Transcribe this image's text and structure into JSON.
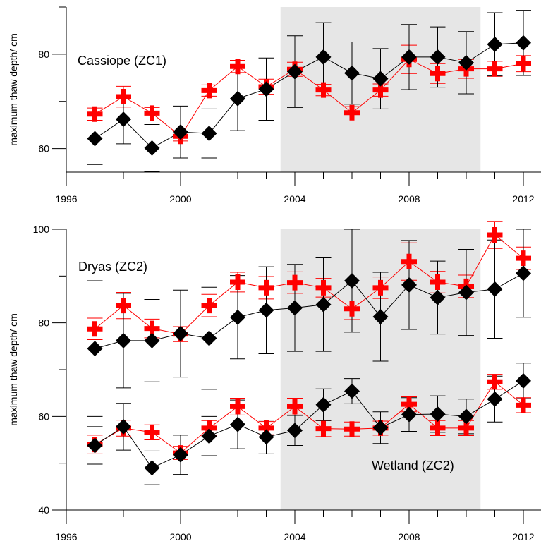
{
  "chart_data": [
    {
      "type": "line",
      "ylabel": "maximum thaw depth/ cm",
      "xlim": [
        1996,
        2012
      ],
      "ylim": [
        55,
        90
      ],
      "x_ticks": [
        "1996",
        "2000",
        "2004",
        "2008",
        "2012"
      ],
      "y_ticks": [
        "60",
        "80"
      ],
      "shaded_x_range": [
        2003.5,
        2010.5
      ],
      "shade_color": "#e6e6e6",
      "annotations": [
        {
          "text": "Cassiope (ZC1)"
        }
      ],
      "series": [
        {
          "marker": "plus",
          "color": "#ff0000",
          "x": [
            1997,
            1998,
            1999,
            2000,
            2001,
            2002,
            2003,
            2004,
            2005,
            2006,
            2007,
            2008,
            2009,
            2010,
            2011,
            2012
          ],
          "y": [
            67.3,
            71.0,
            67.5,
            62.6,
            72.3,
            77.4,
            73.1,
            76.8,
            72.4,
            67.6,
            72.4,
            78.9,
            75.9,
            76.9,
            76.9,
            78.0
          ],
          "err": [
            1.3,
            2.2,
            1.2,
            1.0,
            1.2,
            1.3,
            1.6,
            1.5,
            1.2,
            1.3,
            1.3,
            3.0,
            2.1,
            2.0,
            1.6,
            1.7
          ]
        },
        {
          "marker": "diamond",
          "color": "#000000",
          "x": [
            1997,
            1998,
            1999,
            2000,
            2001,
            2002,
            2003,
            2004,
            2005,
            2006,
            2007,
            2008,
            2009,
            2010,
            2011,
            2012
          ],
          "y": [
            62.1,
            66.2,
            60.1,
            63.5,
            63.2,
            70.6,
            72.6,
            76.3,
            79.4,
            76.0,
            74.8,
            79.4,
            79.4,
            78.2,
            82.1,
            82.4
          ],
          "err": [
            5.5,
            5.2,
            5.0,
            5.5,
            5.2,
            6.8,
            6.6,
            7.6,
            7.3,
            6.6,
            6.4,
            6.9,
            6.4,
            6.6,
            6.7,
            6.9
          ]
        }
      ]
    },
    {
      "type": "line",
      "ylabel": "maximum thaw depth/ cm",
      "xlim": [
        1996,
        2012
      ],
      "ylim": [
        40,
        100
      ],
      "x_ticks": [
        "1996",
        "2000",
        "2004",
        "2008",
        "2012"
      ],
      "y_ticks": [
        "40",
        "60",
        "80",
        "100"
      ],
      "shaded_x_range": [
        2003.5,
        2010.5
      ],
      "shade_color": "#e6e6e6",
      "annotations": [
        {
          "text": "Dryas (ZC2)"
        },
        {
          "text": "Wetland (ZC2)"
        }
      ],
      "series": [
        {
          "marker": "plus",
          "color": "#ff0000",
          "x": [
            1997,
            1998,
            1999,
            2000,
            2001,
            2002,
            2003,
            2004,
            2005,
            2006,
            2007,
            2008,
            2009,
            2010,
            2011,
            2012
          ],
          "y": [
            78.7,
            83.7,
            78.8,
            77.6,
            83.7,
            88.7,
            87.5,
            88.6,
            87.5,
            83.0,
            87.5,
            93.1,
            88.7,
            87.8,
            98.8,
            93.8
          ],
          "err": [
            2.3,
            2.8,
            2.0,
            1.6,
            2.4,
            2.1,
            2.4,
            2.3,
            2.0,
            2.3,
            2.3,
            4.0,
            2.3,
            2.4,
            2.9,
            2.4
          ]
        },
        {
          "marker": "diamond",
          "color": "#000000",
          "x": [
            1997,
            1998,
            1999,
            2000,
            2001,
            2002,
            2003,
            2004,
            2005,
            2006,
            2007,
            2008,
            2009,
            2010,
            2011,
            2012
          ],
          "y": [
            74.5,
            76.2,
            76.2,
            77.7,
            76.7,
            81.2,
            82.7,
            83.2,
            83.9,
            89.0,
            81.3,
            88.1,
            85.4,
            86.5,
            87.2,
            90.6
          ],
          "err": [
            14.5,
            10.1,
            8.8,
            9.3,
            10.9,
            8.9,
            9.3,
            9.3,
            10.0,
            11.0,
            9.5,
            9.5,
            7.8,
            9.2,
            10.5,
            9.4
          ]
        },
        {
          "marker": "plus",
          "color": "#ff0000",
          "x": [
            1997,
            1998,
            1999,
            2000,
            2001,
            2002,
            2003,
            2004,
            2005,
            2006,
            2007,
            2008,
            2009,
            2010,
            2011,
            2012
          ],
          "y": [
            54.0,
            57.5,
            56.6,
            52.2,
            57.5,
            62.1,
            57.5,
            62.1,
            57.4,
            57.3,
            57.5,
            62.6,
            57.5,
            57.5,
            67.4,
            62.4
          ],
          "err": [
            2.0,
            1.7,
            1.6,
            1.4,
            1.6,
            1.8,
            1.4,
            1.8,
            1.7,
            1.5,
            1.5,
            1.6,
            1.6,
            1.6,
            1.6,
            1.6
          ]
        },
        {
          "marker": "diamond",
          "color": "#000000",
          "x": [
            1997,
            1998,
            1999,
            2000,
            2001,
            2002,
            2003,
            2004,
            2005,
            2006,
            2007,
            2008,
            2009,
            2010,
            2011,
            2012
          ],
          "y": [
            53.8,
            57.8,
            49.0,
            51.8,
            55.8,
            58.3,
            55.6,
            57.0,
            62.5,
            65.4,
            57.6,
            60.4,
            60.5,
            60.0,
            63.7,
            67.6
          ],
          "err": [
            4.0,
            5.0,
            3.6,
            4.2,
            4.2,
            5.2,
            3.6,
            3.2,
            3.4,
            2.7,
            3.4,
            3.6,
            3.9,
            3.7,
            4.9,
            3.8
          ]
        }
      ]
    }
  ]
}
